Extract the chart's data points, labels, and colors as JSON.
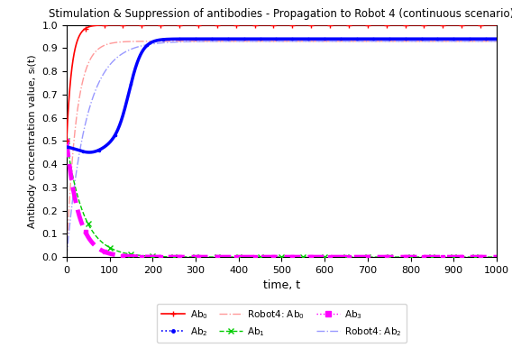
{
  "title": "Stimulation & Suppression of antibodies - Propagation to Robot 4 (continuous scenario)",
  "xlabel": "time, t",
  "ylabel": "Antibody concentration value, sᵢ(t)",
  "xlim": [
    0,
    1000
  ],
  "ylim": [
    0,
    1.0
  ],
  "yticks": [
    0,
    0.1,
    0.2,
    0.3,
    0.4,
    0.5,
    0.6,
    0.7,
    0.8,
    0.9,
    1.0
  ],
  "xticks": [
    0,
    100,
    200,
    300,
    400,
    500,
    600,
    700,
    800,
    900,
    1000
  ],
  "Ab0": {
    "color": "#ff0000",
    "lw": 1.2
  },
  "Ab1": {
    "color": "#00cc00",
    "lw": 1.0
  },
  "Ab2": {
    "color": "#0000ff",
    "lw": 2.5
  },
  "Ab3": {
    "color": "#ff00ff",
    "lw": 3.5
  },
  "R4Ab0": {
    "color": "#ff9999",
    "lw": 1.0
  },
  "R4Ab2": {
    "color": "#9999ff",
    "lw": 1.0
  },
  "bg": "#ffffff"
}
